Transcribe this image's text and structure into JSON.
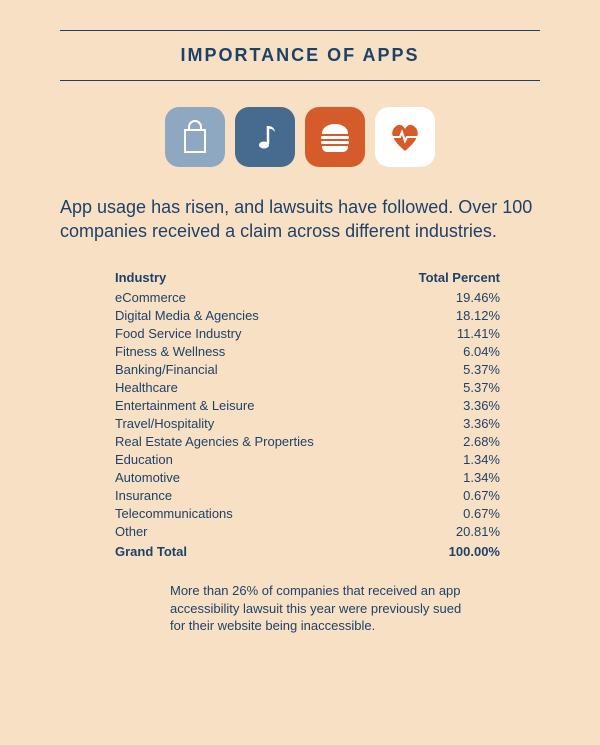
{
  "title": "IMPORTANCE OF APPS",
  "icons": {
    "bag_bg": "#8ea8c2",
    "music_bg": "#476a8f",
    "burger_bg": "#d65b2b",
    "heart_bg": "#ffffff",
    "icon_fg_light": "#ffffff",
    "heart_fg": "#d65b2b"
  },
  "intro": "App usage has risen, and lawsuits have followed. Over 100 companies received a claim across different industries.",
  "table": {
    "col_industry": "Industry",
    "col_percent": "Total Percent",
    "rows": [
      {
        "industry": "eCommerce",
        "percent": "19.46%"
      },
      {
        "industry": "Digital Media & Agencies",
        "percent": "18.12%"
      },
      {
        "industry": "Food Service Industry",
        "percent": "11.41%"
      },
      {
        "industry": "Fitness & Wellness",
        "percent": "6.04%"
      },
      {
        "industry": "Banking/Financial",
        "percent": "5.37%"
      },
      {
        "industry": "Healthcare",
        "percent": "5.37%"
      },
      {
        "industry": "Entertainment & Leisure",
        "percent": "3.36%"
      },
      {
        "industry": "Travel/Hospitality",
        "percent": "3.36%"
      },
      {
        "industry": "Real Estate Agencies & Properties",
        "percent": "2.68%"
      },
      {
        "industry": "Education",
        "percent": "1.34%"
      },
      {
        "industry": "Automotive",
        "percent": "1.34%"
      },
      {
        "industry": "Insurance",
        "percent": "0.67%"
      },
      {
        "industry": "Telecommunications",
        "percent": "0.67%"
      },
      {
        "industry": "Other",
        "percent": "20.81%"
      }
    ],
    "total_label": "Grand Total",
    "total_value": "100.00%"
  },
  "footnote": "More than 26% of companies that received an app accessibility lawsuit this year were previously sued for their website being inaccessible."
}
